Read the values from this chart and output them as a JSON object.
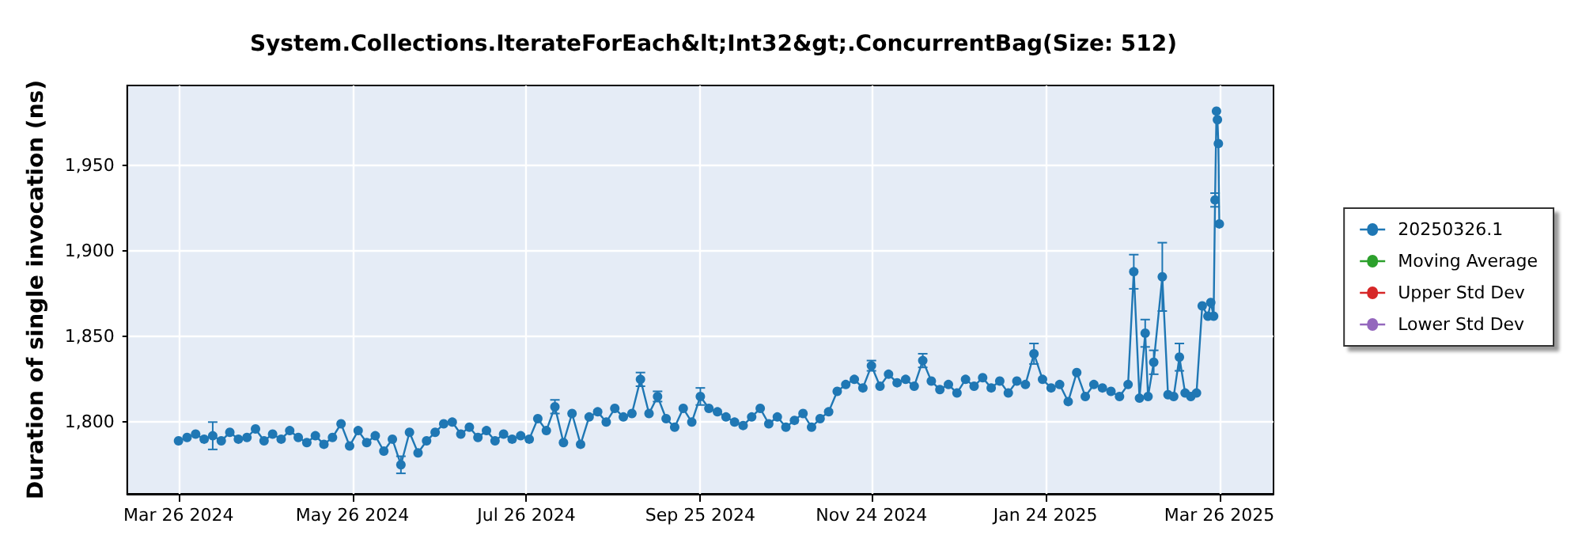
{
  "chart_data": {
    "type": "line",
    "title": "System.Collections.IterateForEach&lt;Int32&gt;.ConcurrentBag(Size: 512)",
    "ylabel": "Duration of single invocation (ns)",
    "xlim": [
      "2024-03-08",
      "2025-04-14"
    ],
    "xticks": [
      {
        "value": "2024-03-26",
        "label": "Mar 26 2024"
      },
      {
        "value": "2024-05-26",
        "label": "May 26 2024"
      },
      {
        "value": "2024-07-26",
        "label": "Jul 26 2024"
      },
      {
        "value": "2024-09-25",
        "label": "Sep 25 2024"
      },
      {
        "value": "2024-11-24",
        "label": "Nov 24 2024"
      },
      {
        "value": "2025-01-24",
        "label": "Jan 24 2025"
      },
      {
        "value": "2025-03-26",
        "label": "Mar 26 2025"
      }
    ],
    "ylim": [
      1758,
      1997
    ],
    "yticks": [
      {
        "value": 1800,
        "label": "1,800"
      },
      {
        "value": 1850,
        "label": "1,850"
      },
      {
        "value": 1900,
        "label": "1,900"
      },
      {
        "value": 1950,
        "label": "1,950"
      }
    ],
    "grid": true,
    "legend": "right",
    "marker": "circle",
    "line_style": "solid",
    "series": [
      {
        "name": "20250326.1",
        "color": "#1f77b4",
        "x": [
          "2024-03-26",
          "2024-03-29",
          "2024-04-01",
          "2024-04-04",
          "2024-04-07",
          "2024-04-10",
          "2024-04-13",
          "2024-04-16",
          "2024-04-19",
          "2024-04-22",
          "2024-04-25",
          "2024-04-28",
          "2024-05-01",
          "2024-05-04",
          "2024-05-07",
          "2024-05-10",
          "2024-05-13",
          "2024-05-16",
          "2024-05-19",
          "2024-05-22",
          "2024-05-25",
          "2024-05-28",
          "2024-05-31",
          "2024-06-03",
          "2024-06-06",
          "2024-06-09",
          "2024-06-12",
          "2024-06-15",
          "2024-06-18",
          "2024-06-21",
          "2024-06-24",
          "2024-06-27",
          "2024-06-30",
          "2024-07-03",
          "2024-07-06",
          "2024-07-09",
          "2024-07-12",
          "2024-07-15",
          "2024-07-18",
          "2024-07-21",
          "2024-07-24",
          "2024-07-27",
          "2024-07-30",
          "2024-08-02",
          "2024-08-05",
          "2024-08-08",
          "2024-08-11",
          "2024-08-14",
          "2024-08-17",
          "2024-08-20",
          "2024-08-23",
          "2024-08-26",
          "2024-08-29",
          "2024-09-01",
          "2024-09-04",
          "2024-09-07",
          "2024-09-10",
          "2024-09-13",
          "2024-09-16",
          "2024-09-19",
          "2024-09-22",
          "2024-09-25",
          "2024-09-28",
          "2024-10-01",
          "2024-10-04",
          "2024-10-07",
          "2024-10-10",
          "2024-10-13",
          "2024-10-16",
          "2024-10-19",
          "2024-10-22",
          "2024-10-25",
          "2024-10-28",
          "2024-10-31",
          "2024-11-03",
          "2024-11-06",
          "2024-11-09",
          "2024-11-12",
          "2024-11-15",
          "2024-11-18",
          "2024-11-21",
          "2024-11-24",
          "2024-11-27",
          "2024-11-30",
          "2024-12-03",
          "2024-12-06",
          "2024-12-09",
          "2024-12-12",
          "2024-12-15",
          "2024-12-18",
          "2024-12-21",
          "2024-12-24",
          "2024-12-27",
          "2024-12-30",
          "2025-01-02",
          "2025-01-05",
          "2025-01-08",
          "2025-01-11",
          "2025-01-14",
          "2025-01-17",
          "2025-01-20",
          "2025-01-23",
          "2025-01-26",
          "2025-01-29",
          "2025-02-01",
          "2025-02-04",
          "2025-02-07",
          "2025-02-10",
          "2025-02-13",
          "2025-02-16",
          "2025-02-19",
          "2025-02-22",
          "2025-02-24",
          "2025-02-26",
          "2025-02-28",
          "2025-03-01",
          "2025-03-03",
          "2025-03-06",
          "2025-03-08",
          "2025-03-10",
          "2025-03-12",
          "2025-03-14",
          "2025-03-16",
          "2025-03-18",
          "2025-03-20",
          "2025-03-22",
          "2025-03-23",
          "2025-03-24",
          "2025-03-24T12:00",
          "2025-03-25",
          "2025-03-25T08:00",
          "2025-03-25T16:00",
          "2025-03-26"
        ],
        "values": [
          1789,
          1791,
          1793,
          1790,
          1792,
          1789,
          1794,
          1790,
          1791,
          1796,
          1789,
          1793,
          1790,
          1795,
          1791,
          1788,
          1792,
          1787,
          1791,
          1799,
          1786,
          1795,
          1788,
          1792,
          1783,
          1790,
          1775,
          1794,
          1782,
          1789,
          1794,
          1799,
          1800,
          1793,
          1797,
          1791,
          1795,
          1789,
          1793,
          1790,
          1792,
          1790,
          1802,
          1795,
          1809,
          1788,
          1805,
          1787,
          1803,
          1806,
          1800,
          1808,
          1803,
          1805,
          1825,
          1805,
          1815,
          1802,
          1797,
          1808,
          1800,
          1815,
          1808,
          1806,
          1803,
          1800,
          1798,
          1803,
          1808,
          1799,
          1803,
          1797,
          1801,
          1805,
          1797,
          1802,
          1806,
          1818,
          1822,
          1825,
          1820,
          1833,
          1821,
          1828,
          1823,
          1825,
          1821,
          1836,
          1824,
          1819,
          1822,
          1817,
          1825,
          1821,
          1826,
          1820,
          1824,
          1817,
          1824,
          1822,
          1840,
          1825,
          1820,
          1822,
          1812,
          1829,
          1815,
          1822,
          1820,
          1818,
          1815,
          1822,
          1888,
          1814,
          1852,
          1815,
          1835,
          1885,
          1816,
          1815,
          1838,
          1817,
          1815,
          1817,
          1868,
          1862,
          1870,
          1862,
          1930,
          1982,
          1977,
          1963,
          1916
        ],
        "errors": [
          null,
          null,
          null,
          null,
          8,
          null,
          null,
          null,
          null,
          null,
          null,
          null,
          null,
          null,
          null,
          null,
          null,
          null,
          null,
          null,
          null,
          null,
          null,
          null,
          null,
          null,
          5,
          null,
          null,
          null,
          null,
          null,
          null,
          null,
          null,
          null,
          null,
          null,
          null,
          null,
          null,
          null,
          null,
          null,
          4,
          null,
          null,
          null,
          null,
          null,
          null,
          null,
          null,
          null,
          4,
          null,
          3,
          null,
          null,
          null,
          null,
          5,
          null,
          null,
          null,
          null,
          null,
          null,
          null,
          null,
          null,
          null,
          null,
          null,
          null,
          null,
          null,
          null,
          null,
          null,
          null,
          3,
          null,
          null,
          null,
          null,
          null,
          4,
          null,
          null,
          null,
          null,
          null,
          null,
          null,
          null,
          null,
          null,
          null,
          null,
          6,
          null,
          null,
          null,
          null,
          null,
          null,
          null,
          null,
          null,
          null,
          null,
          10,
          null,
          8,
          null,
          7,
          20,
          null,
          null,
          8,
          null,
          null,
          null,
          null,
          null,
          null,
          null,
          4,
          null,
          null,
          null,
          null
        ]
      },
      {
        "name": "Moving Average",
        "color": "#2ca02c",
        "values": [
          null
        ]
      },
      {
        "name": "Upper Std Dev",
        "color": "#d62728",
        "values": [
          null
        ]
      },
      {
        "name": "Lower Std Dev",
        "color": "#9467bd",
        "values": [
          null
        ]
      }
    ]
  }
}
